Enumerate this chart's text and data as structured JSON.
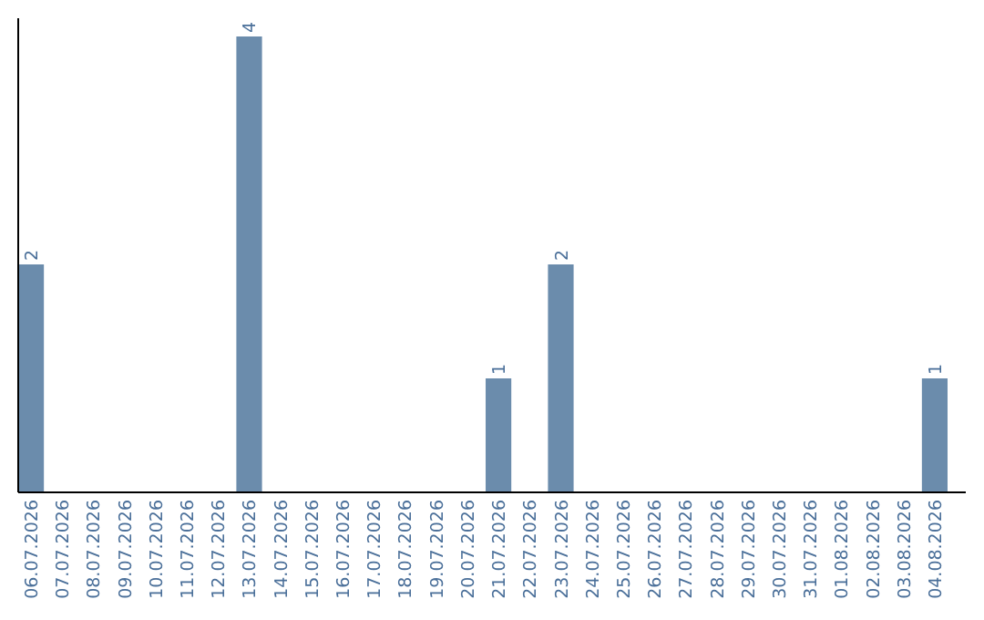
{
  "chart_data": {
    "type": "bar",
    "categories": [
      "06.07.2026",
      "07.07.2026",
      "08.07.2026",
      "09.07.2026",
      "10.07.2026",
      "11.07.2026",
      "12.07.2026",
      "13.07.2026",
      "14.07.2026",
      "15.07.2026",
      "16.07.2026",
      "17.07.2026",
      "18.07.2026",
      "19.07.2026",
      "20.07.2026",
      "21.07.2026",
      "22.07.2026",
      "23.07.2026",
      "24.07.2026",
      "25.07.2026",
      "26.07.2026",
      "27.07.2026",
      "28.07.2026",
      "29.07.2026",
      "30.07.2026",
      "31.07.2026",
      "01.08.2026",
      "02.08.2026",
      "03.08.2026",
      "04.08.2026"
    ],
    "values": [
      2,
      0,
      0,
      0,
      0,
      0,
      0,
      4,
      0,
      0,
      0,
      0,
      0,
      0,
      0,
      1,
      0,
      2,
      0,
      0,
      0,
      0,
      0,
      0,
      0,
      0,
      0,
      0,
      0,
      1
    ],
    "value_labels": [
      "2",
      null,
      null,
      null,
      null,
      null,
      null,
      "4",
      null,
      null,
      null,
      null,
      null,
      null,
      null,
      "1",
      null,
      "2",
      null,
      null,
      null,
      null,
      null,
      null,
      null,
      null,
      null,
      null,
      null,
      "1"
    ],
    "color": "#6b8cac",
    "ylim": [
      0,
      4.16
    ],
    "tick_labels": "x"
  }
}
